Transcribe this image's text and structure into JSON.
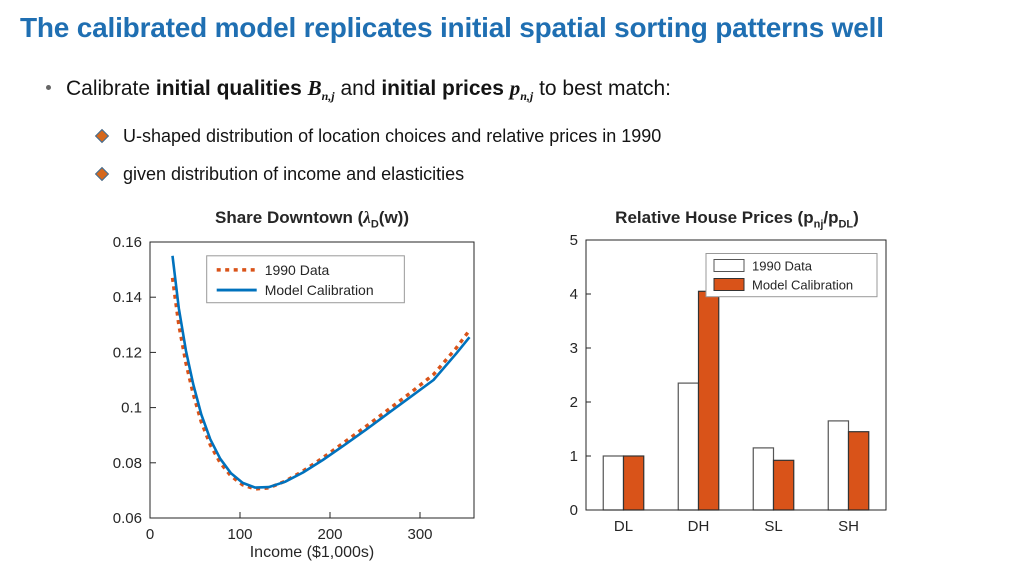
{
  "slide": {
    "title": "The calibrated model replicates initial spatial sorting patterns well",
    "bullet": {
      "pre": "Calibrate ",
      "bold1": "initial qualities ",
      "math1": "B",
      "math1_sub": "n,j",
      "mid": " and ",
      "bold2": "initial prices ",
      "math2": "p",
      "math2_sub": "n,j",
      "post": " to best match:"
    },
    "subbullets": [
      "U-shaped distribution of location choices and relative prices in 1990",
      "given distribution of income and elasticities"
    ]
  },
  "charts": {
    "left_title": {
      "pre": "Share Downtown (",
      "lambda": "λ",
      "sub": "D",
      "post": "(w))"
    },
    "right_title": {
      "pre": "Relative House Prices (p",
      "sub1": "nj",
      "mid": "/p",
      "sub2": "DL",
      "post": ")"
    }
  },
  "chart_data": [
    {
      "type": "line",
      "title": "Share Downtown (λ_D(w))",
      "xlabel": "Income ($1,000s)",
      "xlim": [
        0,
        360
      ],
      "ylim": [
        0.06,
        0.16
      ],
      "xticks": [
        0,
        100,
        200,
        300
      ],
      "yticks": [
        "0.06",
        "0.08",
        "0.1",
        "0.12",
        "0.14",
        "0.16"
      ],
      "ytick_values": [
        0.06,
        0.08,
        0.1,
        0.12,
        0.14,
        0.16
      ],
      "grid": false,
      "legend_position": "upper-left-inside",
      "x": [
        25,
        32,
        40,
        48,
        57,
        67,
        78,
        90,
        103,
        117,
        132,
        150,
        170,
        192,
        215,
        240,
        265,
        290,
        315,
        340,
        355
      ],
      "series": [
        {
          "name": "1990 Data",
          "color": "#D95319",
          "line_style": "dotted",
          "values": [
            0.147,
            0.13,
            0.116,
            0.105,
            0.0948,
            0.0865,
            0.08,
            0.0752,
            0.072,
            0.0705,
            0.0709,
            0.0733,
            0.077,
            0.0818,
            0.0872,
            0.0932,
            0.0993,
            0.1055,
            0.112,
            0.1215,
            0.128
          ]
        },
        {
          "name": "Model Calibration",
          "color": "#0072BD",
          "line_style": "solid",
          "values": [
            0.155,
            0.136,
            0.1205,
            0.1085,
            0.0975,
            0.0885,
            0.0815,
            0.0762,
            0.0727,
            0.071,
            0.0712,
            0.0731,
            0.0765,
            0.081,
            0.0862,
            0.092,
            0.098,
            0.104,
            0.11,
            0.1195,
            0.1255
          ]
        }
      ]
    },
    {
      "type": "bar",
      "title": "Relative House Prices (p_nj/p_DL)",
      "categories": [
        "DL",
        "DH",
        "SL",
        "SH"
      ],
      "ylim": [
        0,
        5
      ],
      "yticks": [
        0,
        1,
        2,
        3,
        4,
        5
      ],
      "grid": false,
      "legend_position": "upper-right-inside",
      "series": [
        {
          "name": "1990 Data",
          "fill": "#ffffff",
          "edge": "#555555",
          "values": [
            1.0,
            2.35,
            1.15,
            1.65
          ]
        },
        {
          "name": "Model Calibration",
          "fill": "#D95319",
          "edge": "#333333",
          "values": [
            1.0,
            4.05,
            0.92,
            1.45
          ]
        }
      ]
    }
  ]
}
